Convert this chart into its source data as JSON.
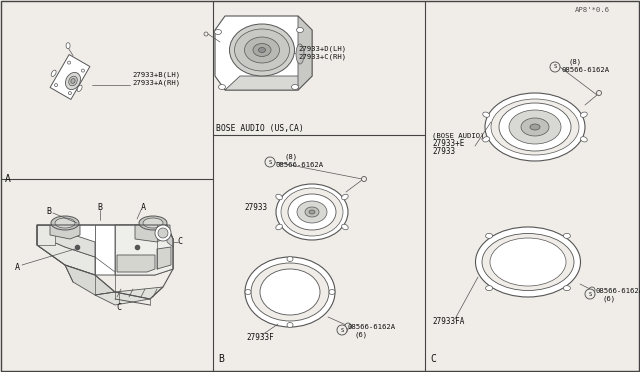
{
  "bg_color": "#f0ede8",
  "border_color": "#444444",
  "line_color": "#555555",
  "text_color": "#111111",
  "footer": "AP8’*0.6",
  "sec_A": "A",
  "sec_B": "B",
  "sec_C": "C"
}
